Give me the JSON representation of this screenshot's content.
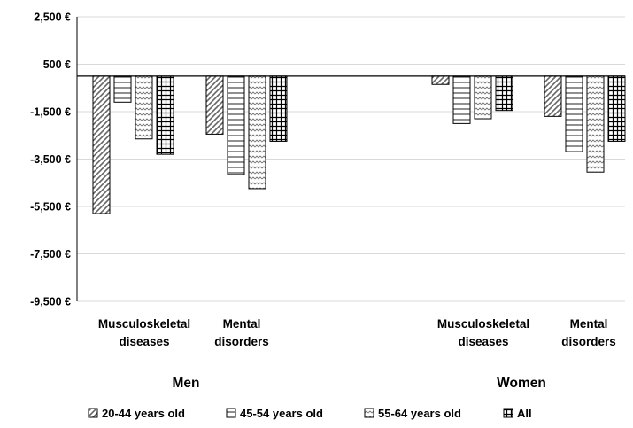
{
  "chart_data": {
    "type": "bar",
    "title": "",
    "xlabel": "",
    "ylabel": "",
    "ylim": [
      -9500,
      2500
    ],
    "yticks": [
      2500,
      500,
      -1500,
      -3500,
      -5500,
      -7500,
      -9500
    ],
    "ytick_labels": [
      "2,500 €",
      "500 €",
      "-1,500 €",
      "-3,500 €",
      "-5,500 €",
      "-7,500 €",
      "-9,500 €"
    ],
    "grid": true,
    "legend_position": "bottom",
    "groups": [
      {
        "label": "Men",
        "categories": [
          "Musculoskeletal diseases",
          "Mental disorders"
        ],
        "category_lines": [
          [
            "Musculoskeletal",
            "diseases"
          ],
          [
            "Mental",
            "disorders"
          ]
        ],
        "series_values": [
          [
            -5800,
            -2450
          ],
          [
            -1100,
            -4150
          ],
          [
            -2650,
            -4750
          ],
          [
            -3300,
            -2750
          ]
        ]
      },
      {
        "label": "Women",
        "categories": [
          "Musculoskeletal diseases",
          "Mental disorders"
        ],
        "category_lines": [
          [
            "Musculoskeletal",
            "diseases"
          ],
          [
            "Mental",
            "disorders"
          ]
        ],
        "series_values": [
          [
            -350,
            -1700
          ],
          [
            -2000,
            -3200
          ],
          [
            -1800,
            -4050
          ],
          [
            -1450,
            -2750
          ]
        ]
      }
    ],
    "series": [
      {
        "name": "20-44 years old",
        "pattern": "diagonal-stripes"
      },
      {
        "name": "45-54 years old",
        "pattern": "horizontal-stripes"
      },
      {
        "name": "55-64 years old",
        "pattern": "zigzag"
      },
      {
        "name": "All",
        "pattern": "grid"
      }
    ],
    "colors": {
      "stroke": "#000000",
      "gridline": "#d9d9d9",
      "background": "#ffffff"
    }
  }
}
